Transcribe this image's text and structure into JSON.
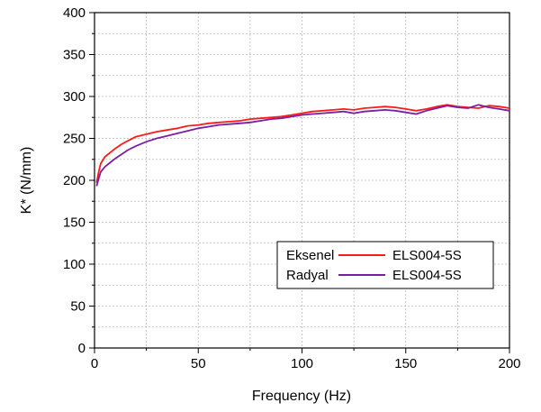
{
  "chart_data": {
    "type": "line",
    "title": "",
    "xlabel": "Frequency (Hz)",
    "ylabel": "K* (N/mm)",
    "xlim": [
      0,
      200
    ],
    "ylim": [
      0,
      400
    ],
    "x_ticks": [
      0,
      50,
      100,
      150,
      200
    ],
    "y_ticks": [
      0,
      50,
      100,
      150,
      200,
      250,
      300,
      350,
      400
    ],
    "grid": true,
    "legend": {
      "placement": "lower-right",
      "entries": [
        {
          "group": "Eksenel",
          "label": "ELS004-5S",
          "color": "#ff1a1a"
        },
        {
          "group": "Radyal",
          "label": "ELS004-5S",
          "color": "#7a1fa2"
        }
      ]
    },
    "series": [
      {
        "name": "Eksenel ELS004-5S",
        "color": "#ff1a1a",
        "x": [
          1,
          2,
          3,
          5,
          8,
          10,
          13,
          16,
          20,
          25,
          30,
          35,
          40,
          45,
          50,
          55,
          60,
          65,
          70,
          75,
          80,
          85,
          90,
          95,
          100,
          105,
          110,
          115,
          120,
          125,
          130,
          135,
          140,
          145,
          150,
          155,
          160,
          165,
          170,
          175,
          180,
          185,
          190,
          195,
          200
        ],
        "y": [
          197,
          210,
          220,
          228,
          234,
          238,
          243,
          247,
          252,
          255,
          258,
          260,
          262,
          265,
          266,
          268,
          269,
          270,
          271,
          273,
          274,
          275,
          276,
          278,
          280,
          282,
          283,
          284,
          285,
          284,
          286,
          287,
          288,
          287,
          285,
          283,
          285,
          288,
          290,
          288,
          287,
          286,
          289,
          288,
          286
        ]
      },
      {
        "name": "Radyal ELS004-5S",
        "color": "#7a1fa2",
        "x": [
          1,
          2,
          3,
          5,
          8,
          10,
          13,
          16,
          20,
          25,
          30,
          35,
          40,
          45,
          50,
          55,
          60,
          65,
          70,
          75,
          80,
          85,
          90,
          95,
          100,
          105,
          110,
          115,
          120,
          125,
          130,
          135,
          140,
          145,
          150,
          155,
          160,
          165,
          170,
          175,
          180,
          185,
          190,
          195,
          200
        ],
        "y": [
          193,
          202,
          210,
          216,
          222,
          226,
          231,
          236,
          241,
          246,
          250,
          253,
          256,
          259,
          262,
          264,
          266,
          267,
          268,
          269,
          271,
          273,
          274,
          276,
          278,
          279,
          280,
          281,
          282,
          280,
          282,
          283,
          284,
          283,
          281,
          279,
          283,
          286,
          289,
          287,
          286,
          290,
          287,
          285,
          283
        ]
      }
    ]
  }
}
